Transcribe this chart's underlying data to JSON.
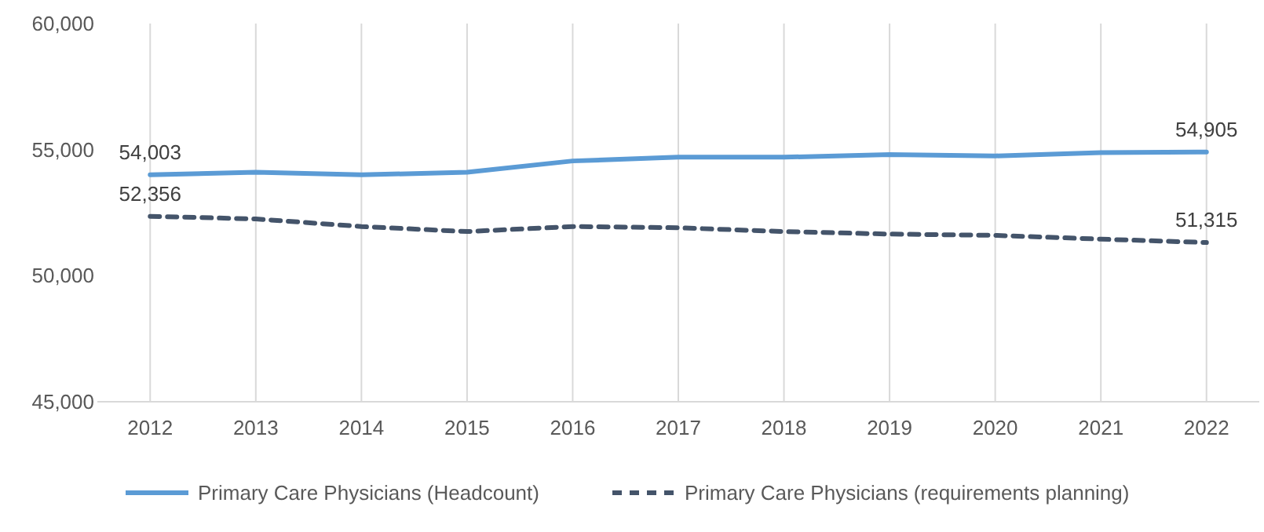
{
  "chart_data": {
    "type": "line",
    "categories": [
      "2012",
      "2013",
      "2014",
      "2015",
      "2016",
      "2017",
      "2018",
      "2019",
      "2020",
      "2021",
      "2022"
    ],
    "ylim": [
      45000,
      60000
    ],
    "yticks": [
      {
        "value": 45000,
        "label": "45,000"
      },
      {
        "value": 50000,
        "label": "50,000"
      },
      {
        "value": 55000,
        "label": "55,000"
      },
      {
        "value": 60000,
        "label": "60,000"
      }
    ],
    "grid": "x",
    "legend": "bottom",
    "marker": "none",
    "series": [
      {
        "name": "Primary Care Physicians (Headcount)",
        "color": "#5b9bd5",
        "line_style": "solid",
        "values": [
          54003,
          54100,
          54000,
          54100,
          54550,
          54700,
          54700,
          54800,
          54750,
          54880,
          54905
        ],
        "value_labels": [
          "54,003",
          null,
          null,
          null,
          null,
          null,
          null,
          null,
          null,
          null,
          "54,905"
        ]
      },
      {
        "name": "Primary Care Physicians (requirements planning)",
        "color": "#44546a",
        "line_style": "dashed",
        "values": [
          52356,
          52250,
          51950,
          51750,
          51950,
          51900,
          51750,
          51650,
          51600,
          51450,
          51315
        ],
        "value_labels": [
          "52,356",
          null,
          null,
          null,
          null,
          null,
          null,
          null,
          null,
          null,
          "51,315"
        ]
      }
    ]
  }
}
